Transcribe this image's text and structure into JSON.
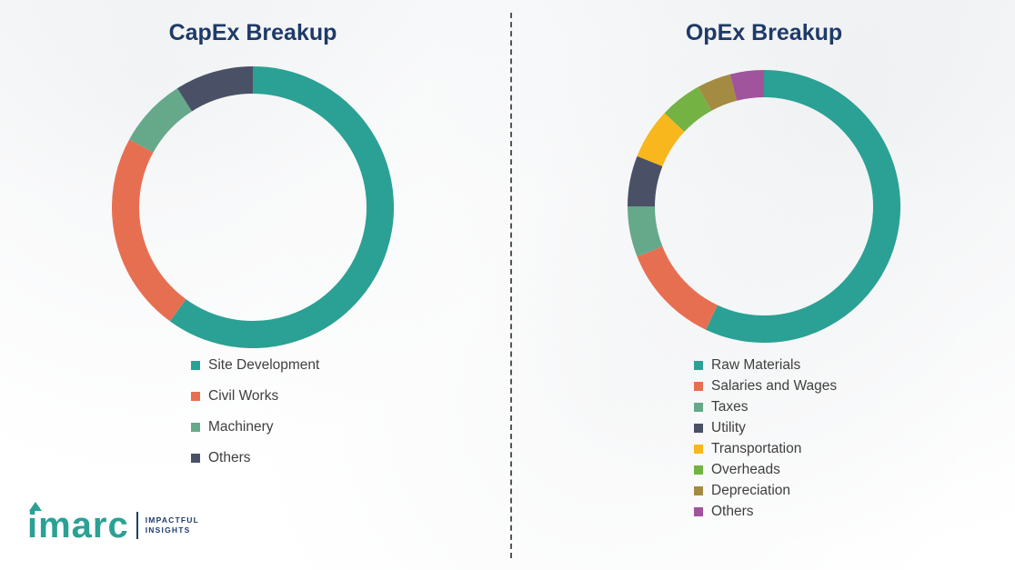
{
  "chart_data": [
    {
      "type": "pie",
      "variant": "donut",
      "title": "CapEx Breakup",
      "legend_position": "below",
      "direction": "clockwise",
      "start_angle_deg": 0,
      "segments": [
        {
          "label": "Site Development",
          "value": 60,
          "color": "#2aa194"
        },
        {
          "label": "Civil Works",
          "value": 23,
          "color": "#e76f51"
        },
        {
          "label": "Machinery",
          "value": 8,
          "color": "#65a98a"
        },
        {
          "label": "Others",
          "value": 9,
          "color": "#4a5167"
        }
      ]
    },
    {
      "type": "pie",
      "variant": "donut",
      "title": "OpEx Breakup",
      "legend_position": "below",
      "direction": "clockwise",
      "start_angle_deg": 0,
      "segments": [
        {
          "label": "Raw Materials",
          "value": 57,
          "color": "#2aa194"
        },
        {
          "label": "Salaries and Wages",
          "value": 12,
          "color": "#e76f51"
        },
        {
          "label": "Taxes",
          "value": 6,
          "color": "#65a98a"
        },
        {
          "label": "Utility",
          "value": 6,
          "color": "#4a5167"
        },
        {
          "label": "Transportation",
          "value": 6,
          "color": "#f7b71d"
        },
        {
          "label": "Overheads",
          "value": 5,
          "color": "#74b244"
        },
        {
          "label": "Depreciation",
          "value": 4,
          "color": "#a38b42"
        },
        {
          "label": "Others",
          "value": 4,
          "color": "#a0549b"
        }
      ]
    }
  ],
  "logo": {
    "brand": "imarc",
    "tagline_line1": "IMPACTFUL",
    "tagline_line2": "INSIGHTS"
  },
  "styles": {
    "title_color": "#1e3a68",
    "legend_text_color": "#3f3f3f",
    "divider_color": "#555555",
    "brand_teal": "#2aa194",
    "brand_navy": "#1d3c6d"
  }
}
